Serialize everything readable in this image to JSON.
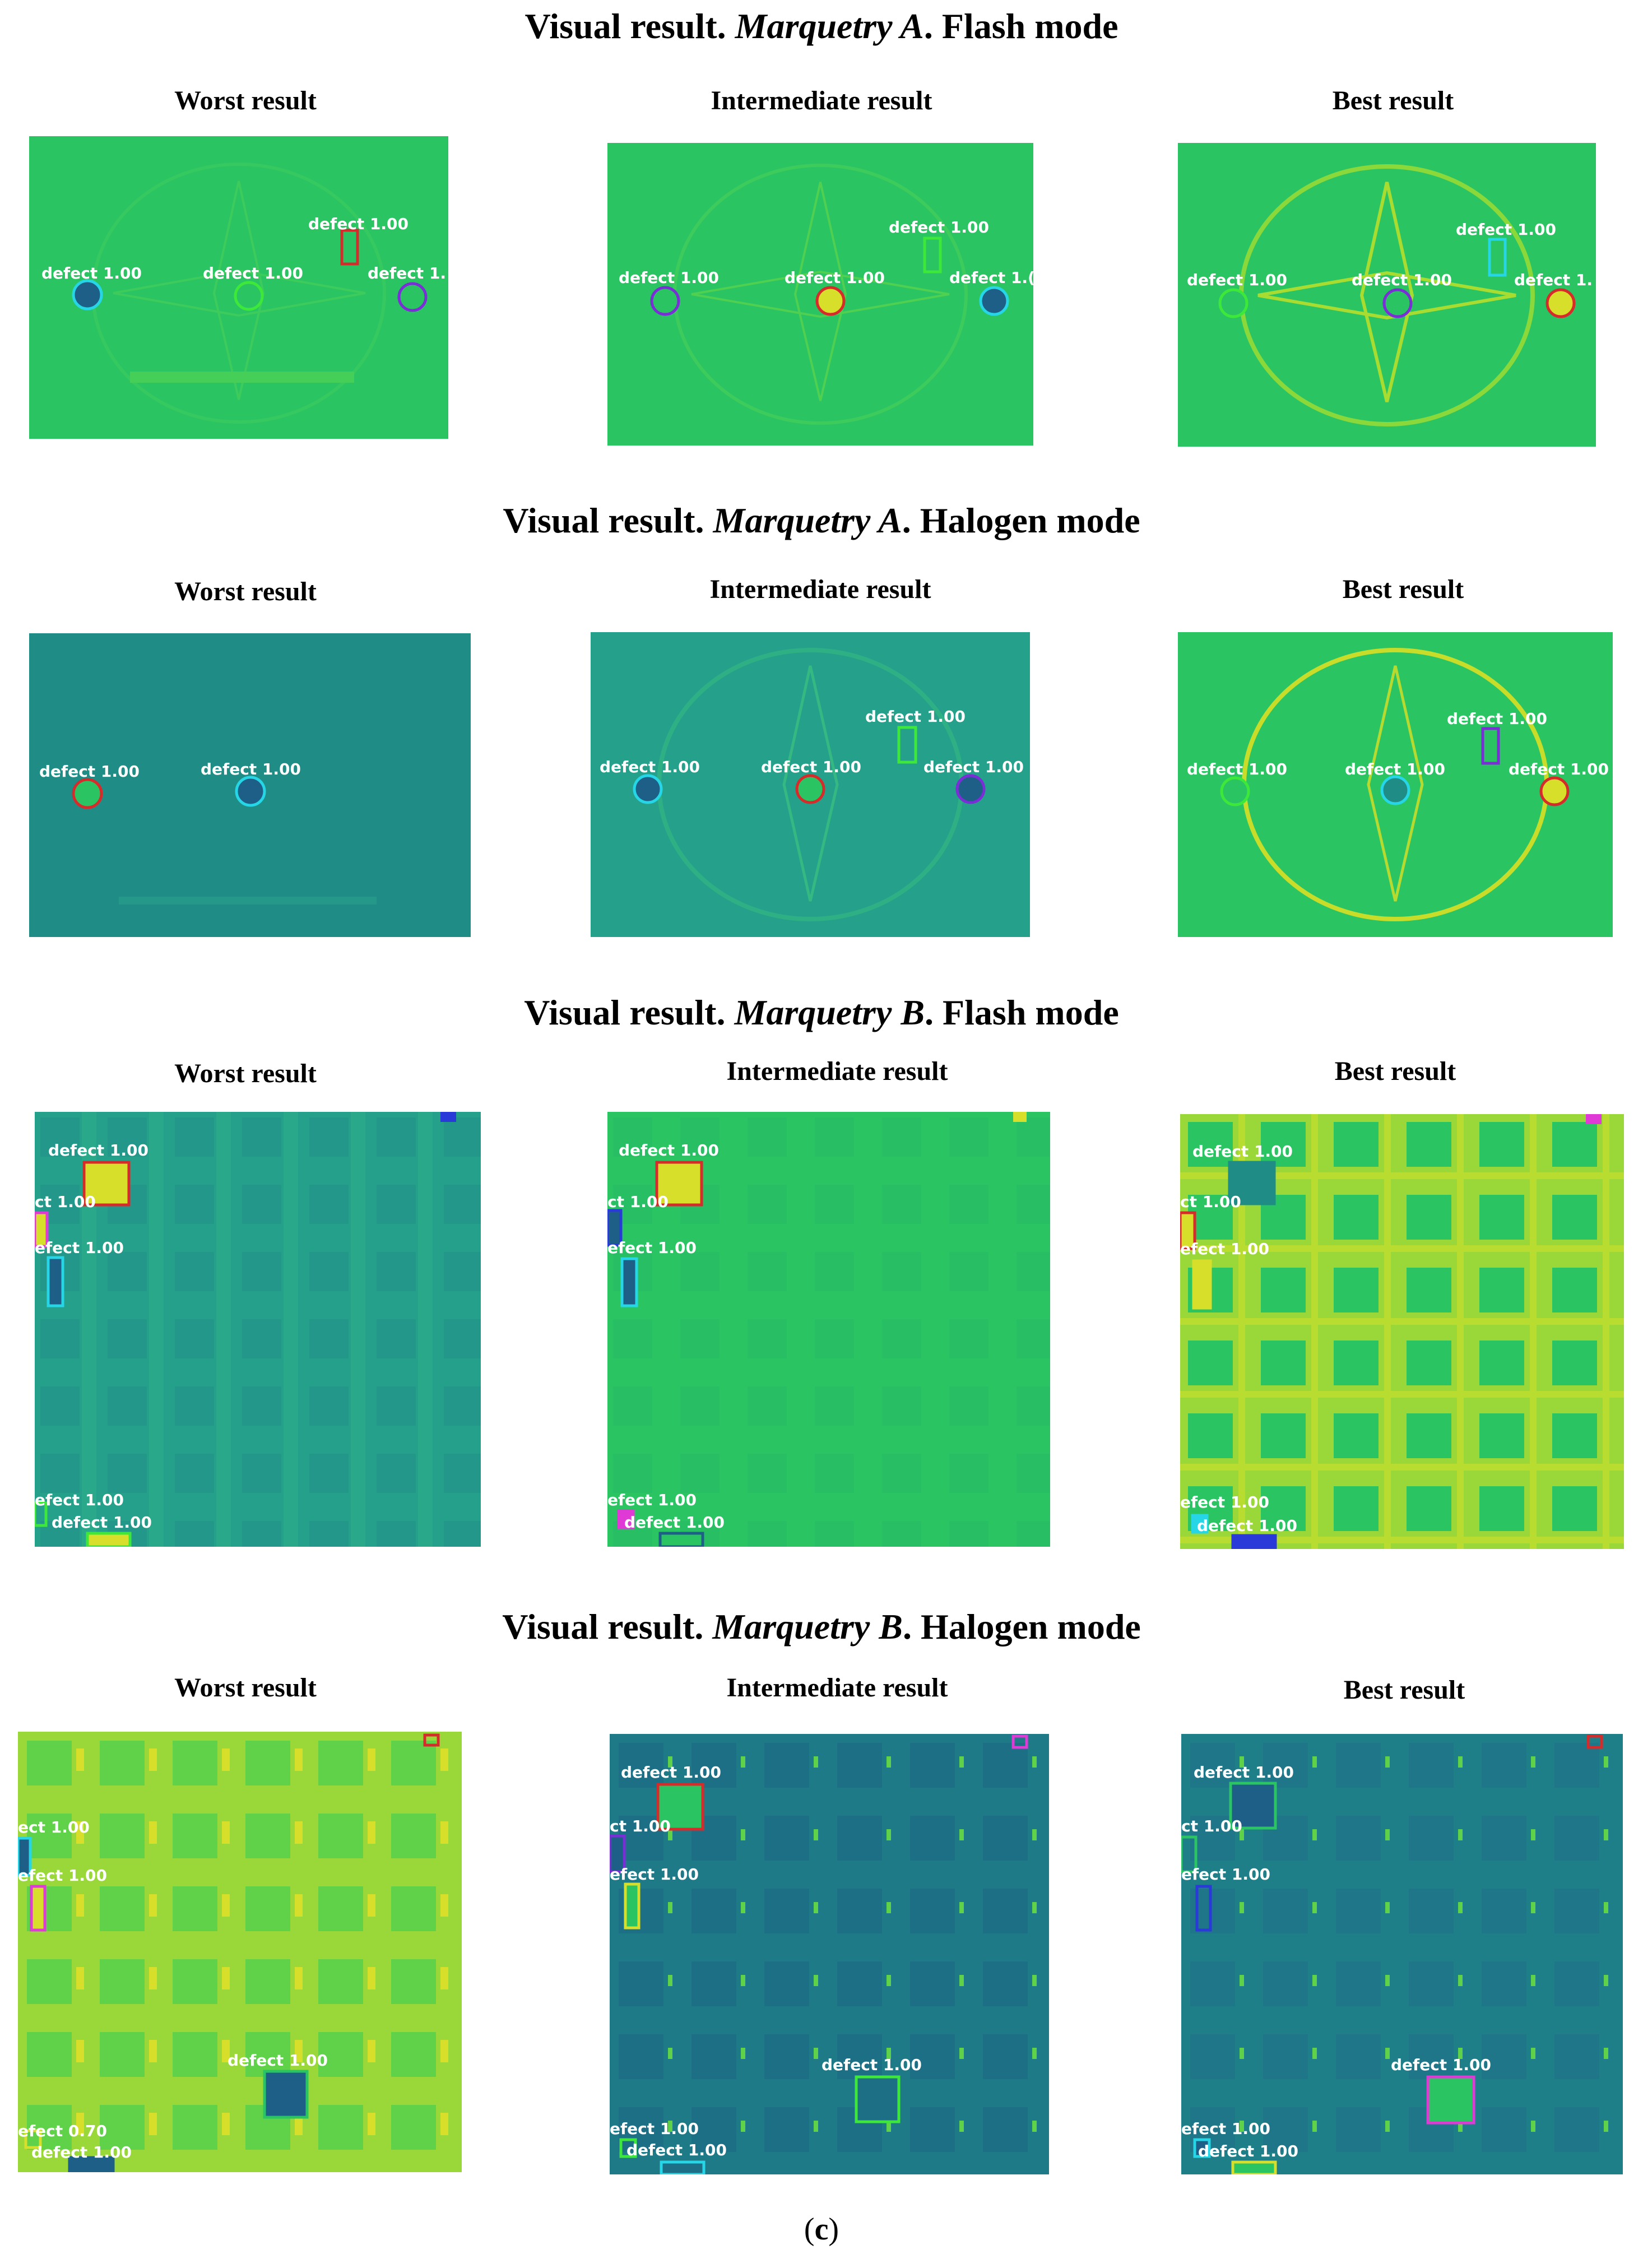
{
  "caption": {
    "open": "(",
    "letter": "c",
    "close": ")"
  },
  "colors": {
    "teal_dark": "#1f8c86",
    "teal": "#25a08a",
    "green": "#2ac463",
    "green_light": "#5fd24a",
    "yellow": "#d8df2a",
    "navy": "#1d5f86",
    "red": "#d62b2b",
    "cyan": "#27d6e6",
    "purple": "#7a2ed6",
    "magenta": "#e03ad6",
    "lime": "#3ee83a",
    "blue": "#2a3ad8"
  },
  "sections": [
    {
      "title_prefix": "Visual result. ",
      "title_italic": "Marquetry A",
      "title_suffix": ". Flash mode",
      "columns": [
        {
          "title": "Worst result",
          "labels": [
            "defect 1.00",
            "defect 1.00",
            "defect 1.00",
            "defect 1."
          ]
        },
        {
          "title": "Intermediate result",
          "labels": [
            "defect 1.00",
            "defect 1.00",
            "defect 1.00",
            "defect 1.("
          ]
        },
        {
          "title": "Best result",
          "labels": [
            "defect 1.00",
            "defect 1.00",
            "defect 1.00",
            "defect 1."
          ]
        }
      ]
    },
    {
      "title_prefix": "Visual result. ",
      "title_italic": "Marquetry A",
      "title_suffix": ". Halogen mode",
      "columns": [
        {
          "title": "Worst result",
          "labels": [
            "defect 1.00",
            "defect 1.00"
          ]
        },
        {
          "title": "Intermediate result",
          "labels": [
            "defect 1.00",
            "defect 1.00",
            "defect 1.00",
            "defect 1.00"
          ]
        },
        {
          "title": "Best result",
          "labels": [
            "defect 1.00",
            "defect 1.00",
            "defect 1.00",
            "defect 1.00"
          ]
        }
      ]
    },
    {
      "title_prefix": "Visual result. ",
      "title_italic": "Marquetry B",
      "title_suffix": ". Flash mode",
      "columns": [
        {
          "title": "Worst result",
          "labels": [
            "defect 1.00",
            "ct 1.00",
            "efect 1.00",
            "efect 1.00",
            "defect 1.00"
          ]
        },
        {
          "title": "Intermediate result",
          "labels": [
            "defect 1.00",
            "ct 1.00",
            "efect 1.00",
            "efect 1.00",
            "defect 1.00"
          ]
        },
        {
          "title": "Best result",
          "labels": [
            "defect 1.00",
            "ct 1.00",
            "efect 1.00",
            "efect 1.00",
            "defect 1.00"
          ]
        }
      ]
    },
    {
      "title_prefix": "Visual result. ",
      "title_italic": "Marquetry B",
      "title_suffix": ". Halogen mode",
      "columns": [
        {
          "title": "Worst result",
          "labels": [
            "ect 1.00",
            "efect 1.00",
            "defect 1.00",
            "efect 0.70",
            "defect 1.00"
          ]
        },
        {
          "title": "Intermediate result",
          "labels": [
            "defect 1.00",
            "ct 1.00",
            "efect 1.00",
            "defect 1.00",
            "efect 1.00",
            "defect 1.00"
          ]
        },
        {
          "title": "Best result",
          "labels": [
            "defect 1.00",
            "ct 1.00",
            "efect 1.00",
            "defect 1.00",
            "efect 1.00",
            "defect 1.00"
          ]
        }
      ]
    }
  ]
}
